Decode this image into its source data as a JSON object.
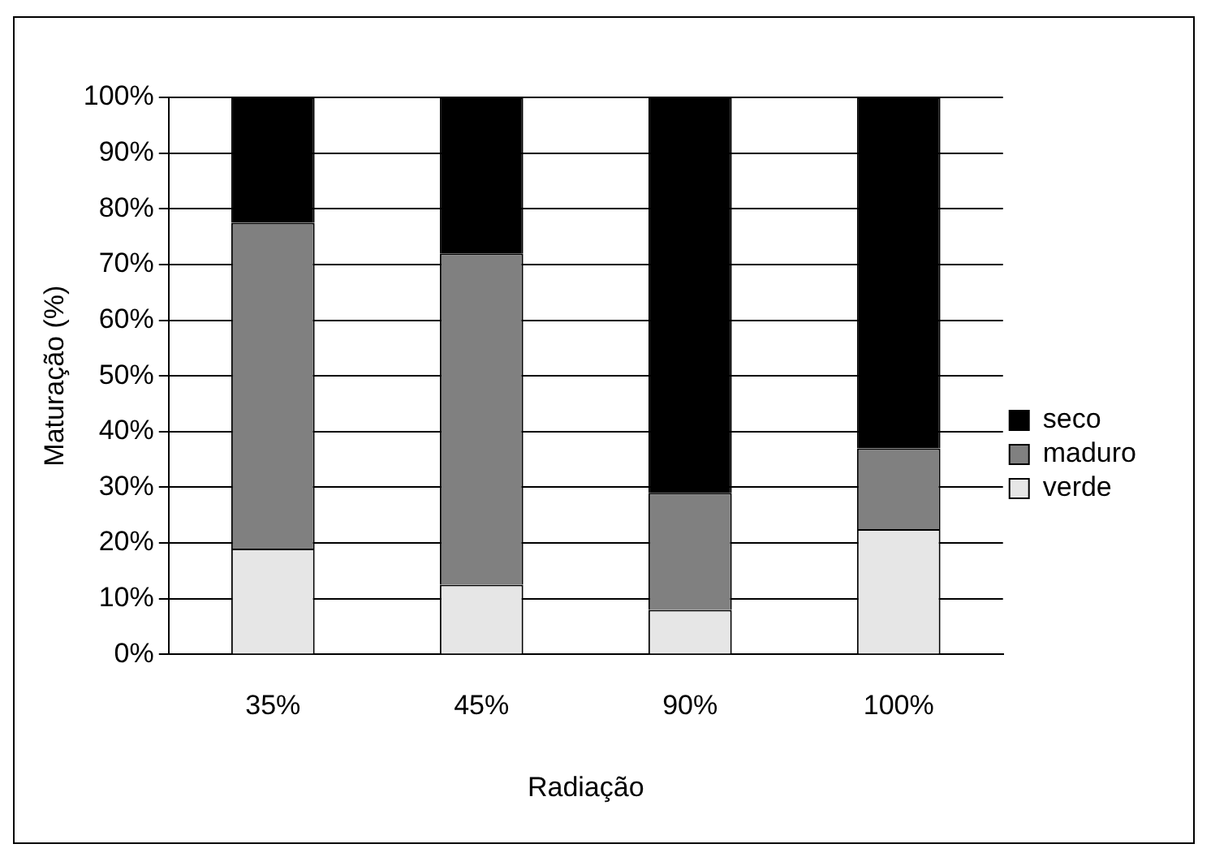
{
  "chart_data": {
    "type": "bar",
    "stacked": true,
    "xlabel": "Radiação",
    "ylabel": "Maturação (%)",
    "categories": [
      "35%",
      "45%",
      "90%",
      "100%"
    ],
    "series": [
      {
        "name": "verde",
        "color": "#e6e6e6",
        "values": [
          19,
          12.5,
          8,
          22.5
        ]
      },
      {
        "name": "maduro",
        "color": "#808080",
        "values": [
          58.5,
          59.5,
          21,
          14.5
        ]
      },
      {
        "name": "seco",
        "color": "#000000",
        "values": [
          22.5,
          28,
          71,
          63
        ]
      }
    ],
    "ylim": [
      0,
      100
    ],
    "yticks": [
      {
        "value": 0,
        "label": "0%"
      },
      {
        "value": 10,
        "label": "10%"
      },
      {
        "value": 20,
        "label": "20%"
      },
      {
        "value": 30,
        "label": "30%"
      },
      {
        "value": 40,
        "label": "40%"
      },
      {
        "value": 50,
        "label": "50%"
      },
      {
        "value": 60,
        "label": "60%"
      },
      {
        "value": 70,
        "label": "70%"
      },
      {
        "value": 80,
        "label": "80%"
      },
      {
        "value": 90,
        "label": "90%"
      },
      {
        "value": 100,
        "label": "100%"
      }
    ],
    "grid": "y",
    "legend": "right"
  }
}
